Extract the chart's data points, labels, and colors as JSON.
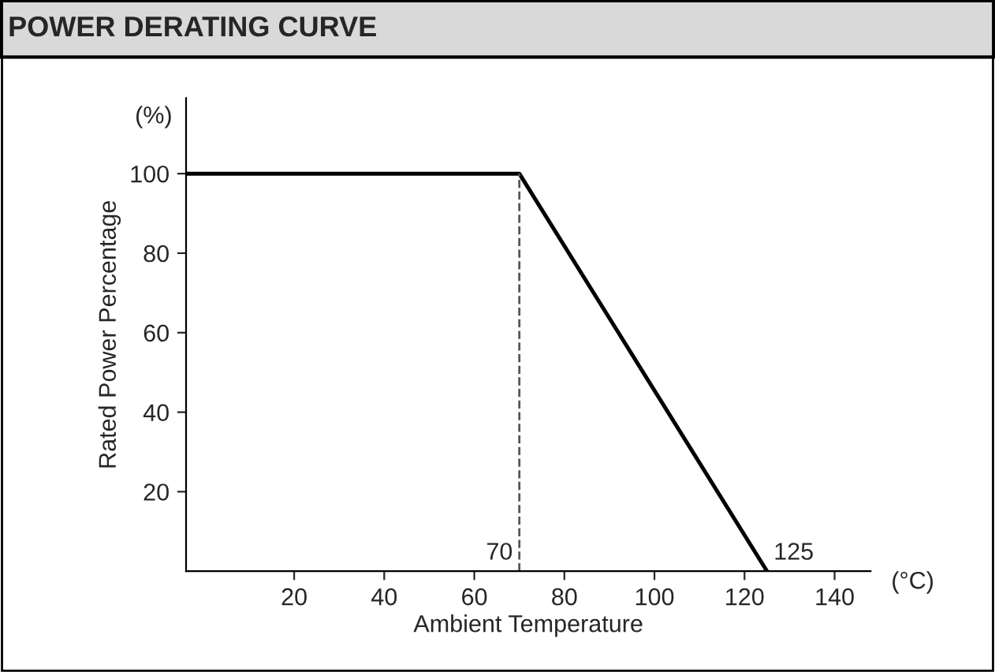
{
  "chart_data": {
    "type": "line",
    "title": "POWER DERATING CURVE",
    "xlabel": "Ambient Temperature",
    "ylabel": "Rated Power Percentage",
    "series": [
      {
        "color": "#000000",
        "x": [
          -4,
          70,
          125
        ],
        "values": [
          100,
          100,
          0
        ]
      }
    ],
    "xlim": [
      -4,
      148
    ],
    "ylim": [
      0,
      119
    ],
    "xticks": [
      20,
      40,
      60,
      80,
      100,
      120,
      140
    ],
    "yticks": [
      20,
      40,
      60,
      80,
      100
    ],
    "ref_lines": [
      {
        "axis": "x",
        "value": 70,
        "color": "#555555",
        "line_style": "dashed"
      }
    ],
    "annotations": [
      {
        "text": "70",
        "x": 70,
        "y": 0
      },
      {
        "text": "125",
        "x": 125,
        "y": 0
      },
      "(°C)",
      "(%)"
    ],
    "grid": false,
    "legend": false,
    "marker": "none",
    "line_style": "solid"
  }
}
